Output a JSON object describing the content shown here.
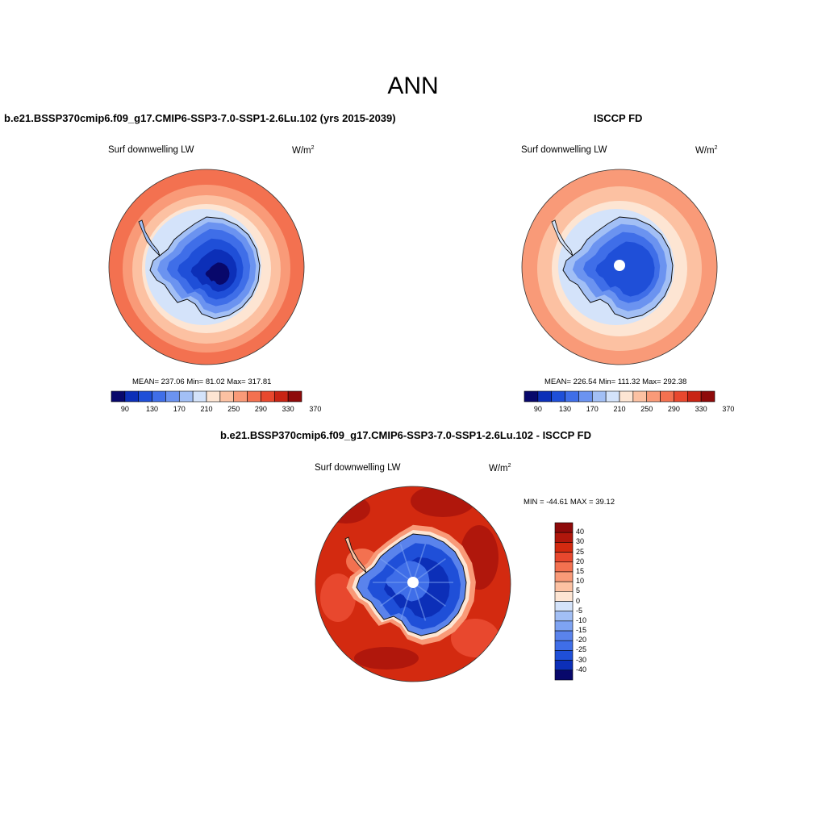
{
  "title": "ANN",
  "palettes": {
    "abs": [
      "#08086b",
      "#0c2fb8",
      "#1f4fd8",
      "#3f6ee8",
      "#6b93f0",
      "#a2bff5",
      "#d4e3fa",
      "#fde5d3",
      "#fcc1a2",
      "#f99a78",
      "#f37150",
      "#e8482e",
      "#c82414",
      "#8e0a0a"
    ],
    "diff": [
      "#8e0a0a",
      "#b0170c",
      "#d32a10",
      "#e8482e",
      "#f37150",
      "#f99a78",
      "#fcc1a2",
      "#fde5d3",
      "#d4e3fa",
      "#a2bff5",
      "#7ea3f2",
      "#5a83ec",
      "#3f6ee8",
      "#1f4fd8",
      "#0c2fb8",
      "#08086b"
    ]
  },
  "panels": [
    {
      "title": "b.e21.BSSP370cmip6.f09_g17.CMIP6-SSP3-7.0-SSP1-2.6Lu.102 (yrs 2015-2039)",
      "variable": "Surf downwelling LW",
      "units_base": "W/m",
      "units_sup": "2",
      "stats": "MEAN= 237.06  Min=  81.02  Max= 317.81",
      "colorbar_ticks": [
        "90",
        "130",
        "170",
        "210",
        "250",
        "290",
        "330",
        "370"
      ]
    },
    {
      "title": "ISCCP FD",
      "variable": "Surf downwelling LW",
      "units_base": "W/m",
      "units_sup": "2",
      "stats": "MEAN= 226.54  Min= 111.32  Max= 292.38",
      "colorbar_ticks": [
        "90",
        "130",
        "170",
        "210",
        "250",
        "290",
        "330",
        "370"
      ]
    },
    {
      "title": "b.e21.BSSP370cmip6.f09_g17.CMIP6-SSP3-7.0-SSP1-2.6Lu.102 - ISCCP FD",
      "variable": "Surf downwelling LW",
      "units_base": "W/m",
      "units_sup": "2",
      "stats": "MIN = -44.61 MAX =  39.12",
      "colorbar_ticks": [
        "40",
        "30",
        "25",
        "20",
        "15",
        "10",
        "5",
        "0",
        "-5",
        "-10",
        "-15",
        "-20",
        "-25",
        "-30",
        "-40"
      ]
    }
  ]
}
